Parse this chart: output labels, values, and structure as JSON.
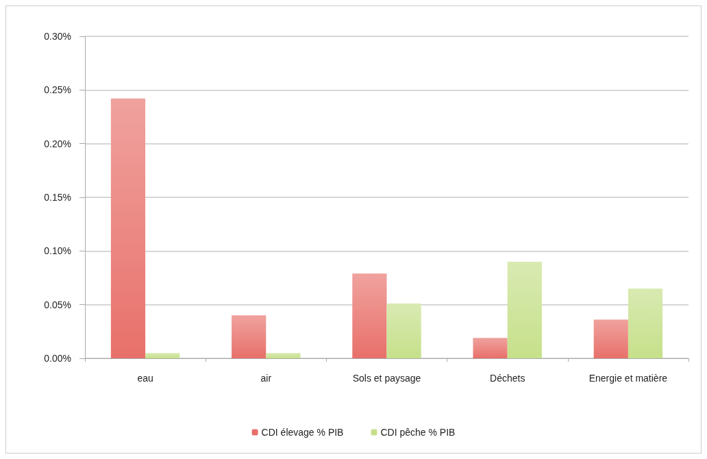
{
  "chart_data": {
    "type": "bar",
    "categories": [
      "eau",
      "air",
      "Sols et paysage",
      "Déchets",
      "Energie et matière"
    ],
    "series": [
      {
        "name": "CDI élevage % PIB",
        "color": "#e8706a",
        "values": [
          0.242,
          0.04,
          0.079,
          0.019,
          0.036
        ]
      },
      {
        "name": "CDI pêche % PIB",
        "color": "#c6e08a",
        "values": [
          0.005,
          0.005,
          0.051,
          0.09,
          0.065
        ]
      }
    ],
    "ylim": [
      0,
      0.3
    ],
    "yticks": [
      {
        "value": 0,
        "label": "0.00%"
      },
      {
        "value": 0.05,
        "label": "0.05%"
      },
      {
        "value": 0.1,
        "label": "0.10%"
      },
      {
        "value": 0.15,
        "label": "0.15%"
      },
      {
        "value": 0.2,
        "label": "0.20%"
      },
      {
        "value": 0.25,
        "label": "0.25%"
      },
      {
        "value": 0.3,
        "label": "0.30%"
      }
    ],
    "grid": "y",
    "legend": "bottom"
  }
}
